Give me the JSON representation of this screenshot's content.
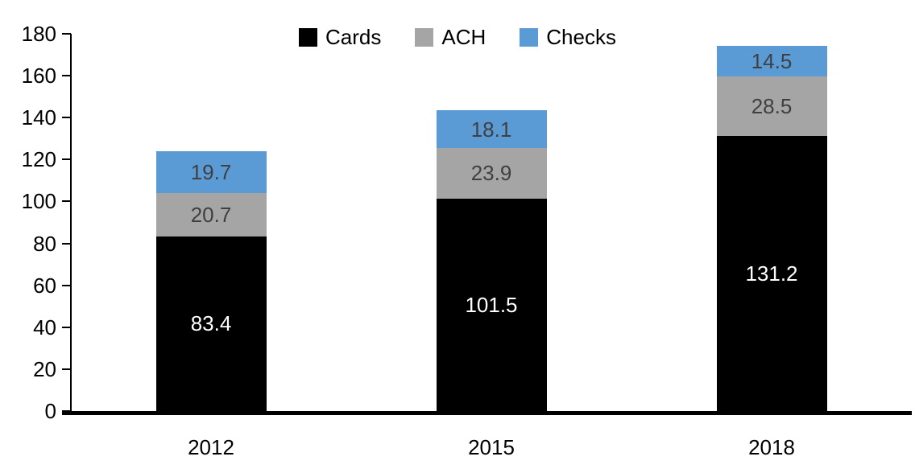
{
  "chart_data": {
    "type": "bar",
    "stacked": true,
    "title": "",
    "xlabel": "",
    "ylabel": "",
    "categories": [
      "2012",
      "2015",
      "2018"
    ],
    "series": [
      {
        "name": "Cards",
        "color": "#000000",
        "label_color": "#ffffff",
        "values": [
          83.4,
          101.5,
          131.2
        ]
      },
      {
        "name": "ACH",
        "color": "#a5a5a5",
        "label_color": "#404040",
        "values": [
          20.7,
          23.9,
          28.5
        ]
      },
      {
        "name": "Checks",
        "color": "#5b9bd5",
        "label_color": "#404040",
        "values": [
          19.7,
          18.1,
          14.5
        ]
      }
    ],
    "totals": [
      123.8,
      143.5,
      174.2
    ],
    "ylim": [
      0,
      180
    ],
    "ytick_step": 20,
    "ytick_labels": [
      "0",
      "20",
      "40",
      "60",
      "80",
      "100",
      "120",
      "140",
      "160",
      "180"
    ],
    "grid": false,
    "legend_position": "top-center",
    "value_labels_shown": true,
    "axis_color": "#000000"
  }
}
